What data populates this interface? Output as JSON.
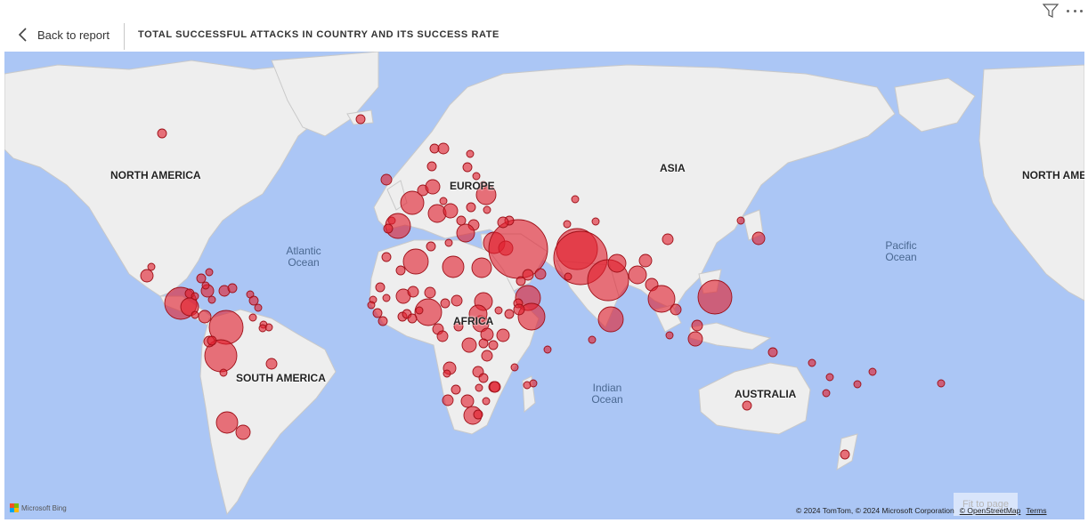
{
  "header": {
    "back_label": "Back to report",
    "title": "TOTAL SUCCESSFUL ATTACKS IN COUNTRY AND ITS SUCCESS RATE"
  },
  "map": {
    "continent_labels": {
      "north_america": "NORTH AMERICA",
      "north_america_right": "NORTH AME",
      "europe": "EUROPE",
      "asia": "ASIA",
      "africa": "AFRICA",
      "south_america": "SOUTH AMERICA",
      "australia": "AUSTRALIA"
    },
    "ocean_labels": {
      "atlantic": "Atlantic Ocean",
      "pacific": "Pacific Ocean",
      "indian": "Indian Ocean"
    },
    "bubble_color": "#e0202e",
    "bubble_stroke": "#9e1018",
    "water_color": "#abc6f5",
    "land_color": "#eeeeee"
  },
  "footer": {
    "bing_label": "Microsoft Bing",
    "copyright": "© 2024 TomTom, © 2024 Microsoft Corporation",
    "osm_label": "© OpenStreetMap",
    "terms_label": "Terms",
    "fit_label": "Fit to page"
  }
}
